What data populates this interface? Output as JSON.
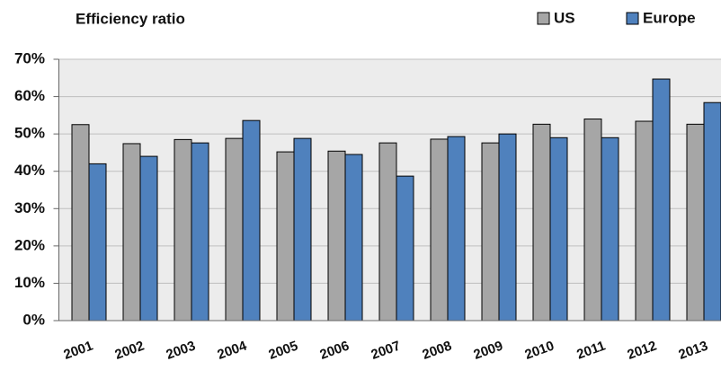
{
  "chart_data": {
    "type": "bar",
    "title": "Efficiency ratio",
    "categories": [
      "2001",
      "2002",
      "2003",
      "2004",
      "2005",
      "2006",
      "2007",
      "2008",
      "2009",
      "2010",
      "2011",
      "2012",
      "2013"
    ],
    "series": [
      {
        "name": "US",
        "color": "#a6a6a6",
        "values": [
          52.5,
          47.4,
          48.5,
          48.8,
          45.2,
          45.4,
          47.6,
          48.6,
          47.6,
          52.6,
          54,
          53.4,
          52.6
        ]
      },
      {
        "name": "Europe",
        "color": "#4f81bd",
        "values": [
          42,
          44,
          47.6,
          53.6,
          48.8,
          44.5,
          38.7,
          49.3,
          50,
          49,
          49,
          64.7,
          58.4
        ]
      }
    ],
    "ylim": [
      0,
      70
    ],
    "yticks": [
      {
        "value": 0,
        "label": "0%"
      },
      {
        "value": 10,
        "label": "10%"
      },
      {
        "value": 20,
        "label": "20%"
      },
      {
        "value": 30,
        "label": "30%"
      },
      {
        "value": 40,
        "label": "40%"
      },
      {
        "value": 50,
        "label": "50%"
      },
      {
        "value": 60,
        "label": "60%"
      },
      {
        "value": 70,
        "label": "70%"
      }
    ],
    "grid": true,
    "legend": "top-right"
  }
}
